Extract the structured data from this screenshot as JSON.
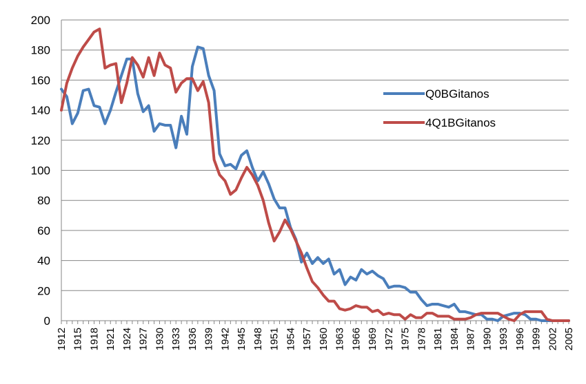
{
  "chart_data": {
    "type": "line",
    "title": "",
    "xlabel": "",
    "ylabel": "",
    "ylim": [
      0,
      200
    ],
    "yticks": [
      0,
      20,
      40,
      60,
      80,
      100,
      120,
      140,
      160,
      180,
      200
    ],
    "xlim": [
      1912,
      2005
    ],
    "xtick_labels": [
      "1912",
      "1915",
      "1918",
      "1921",
      "1924",
      "1927",
      "1930",
      "1933",
      "1936",
      "1939",
      "1942",
      "1945",
      "1948",
      "1951",
      "1954",
      "1957",
      "1960",
      "1963",
      "1966",
      "1969",
      "1972",
      "1975",
      "1978",
      "1981",
      "1984",
      "1987",
      "1990",
      "1993",
      "1996",
      "1999",
      "2002",
      "2005"
    ],
    "grid": "horizontal",
    "legend_position": "right",
    "series": [
      {
        "name": "Q0BGitanos",
        "color": "#4a7ebb",
        "x": [
          1912,
          1913,
          1914,
          1915,
          1916,
          1917,
          1918,
          1919,
          1920,
          1921,
          1922,
          1923,
          1924,
          1925,
          1926,
          1927,
          1928,
          1929,
          1930,
          1931,
          1932,
          1933,
          1934,
          1935,
          1936,
          1937,
          1938,
          1939,
          1940,
          1941,
          1942,
          1943,
          1944,
          1945,
          1946,
          1947,
          1948,
          1949,
          1950,
          1951,
          1952,
          1953,
          1954,
          1955,
          1956,
          1957,
          1958,
          1959,
          1960,
          1961,
          1962,
          1963,
          1964,
          1965,
          1966,
          1967,
          1968,
          1969,
          1970,
          1971,
          1972,
          1973,
          1974,
          1975,
          1976,
          1977,
          1978,
          1979,
          1980,
          1981,
          1982,
          1983,
          1984,
          1985,
          1986,
          1987,
          1988,
          1989,
          1990,
          1991,
          1992,
          1993,
          1994,
          1995,
          1996,
          1997,
          1998,
          1999,
          2000,
          2001,
          2002,
          2003,
          2004,
          2005
        ],
        "values": [
          154,
          149,
          131,
          138,
          153,
          154,
          143,
          142,
          131,
          140,
          152,
          163,
          174,
          174,
          151,
          139,
          143,
          126,
          131,
          130,
          130,
          115,
          136,
          124,
          169,
          182,
          181,
          163,
          153,
          111,
          103,
          104,
          101,
          110,
          113,
          102,
          93,
          99,
          91,
          81,
          75,
          75,
          62,
          54,
          39,
          45,
          38,
          42,
          38,
          41,
          31,
          34,
          24,
          29,
          27,
          34,
          31,
          33,
          30,
          28,
          22,
          23,
          23,
          22,
          19,
          19,
          14,
          10,
          11,
          11,
          10,
          9,
          11,
          6,
          6,
          5,
          4,
          4,
          1,
          1,
          0,
          3,
          4,
          5,
          5,
          4,
          1,
          1,
          0,
          0,
          0,
          0,
          0,
          0
        ]
      },
      {
        "name": "4Q1BGitanos",
        "color": "#be4b48",
        "x": [
          1912,
          1913,
          1914,
          1915,
          1916,
          1917,
          1918,
          1919,
          1920,
          1921,
          1922,
          1923,
          1924,
          1925,
          1926,
          1927,
          1928,
          1929,
          1930,
          1931,
          1932,
          1933,
          1934,
          1935,
          1936,
          1937,
          1938,
          1939,
          1940,
          1941,
          1942,
          1943,
          1944,
          1945,
          1946,
          1947,
          1948,
          1949,
          1950,
          1951,
          1952,
          1953,
          1954,
          1955,
          1956,
          1957,
          1958,
          1959,
          1960,
          1961,
          1962,
          1963,
          1964,
          1965,
          1966,
          1967,
          1968,
          1969,
          1970,
          1971,
          1972,
          1973,
          1974,
          1975,
          1976,
          1977,
          1978,
          1979,
          1980,
          1981,
          1982,
          1983,
          1984,
          1985,
          1986,
          1987,
          1988,
          1989,
          1990,
          1991,
          1992,
          1993,
          1994,
          1995,
          1996,
          1997,
          1998,
          1999,
          2000,
          2001,
          2002,
          2003,
          2004,
          2005
        ],
        "values": [
          140,
          158,
          168,
          176,
          182,
          187,
          192,
          194,
          168,
          170,
          171,
          145,
          158,
          175,
          170,
          162,
          175,
          163,
          178,
          170,
          168,
          152,
          158,
          161,
          161,
          153,
          159,
          145,
          107,
          97,
          93,
          84,
          87,
          95,
          102,
          97,
          90,
          80,
          65,
          53,
          59,
          67,
          61,
          53,
          45,
          35,
          26,
          22,
          17,
          13,
          13,
          8,
          7,
          8,
          10,
          9,
          9,
          6,
          7,
          4,
          5,
          4,
          4,
          1,
          4,
          2,
          2,
          5,
          5,
          3,
          3,
          3,
          1,
          1,
          1,
          2,
          4,
          5,
          5,
          5,
          5,
          3,
          1,
          0,
          4,
          6,
          6,
          6,
          6,
          1,
          0,
          0,
          0,
          0
        ]
      }
    ]
  }
}
